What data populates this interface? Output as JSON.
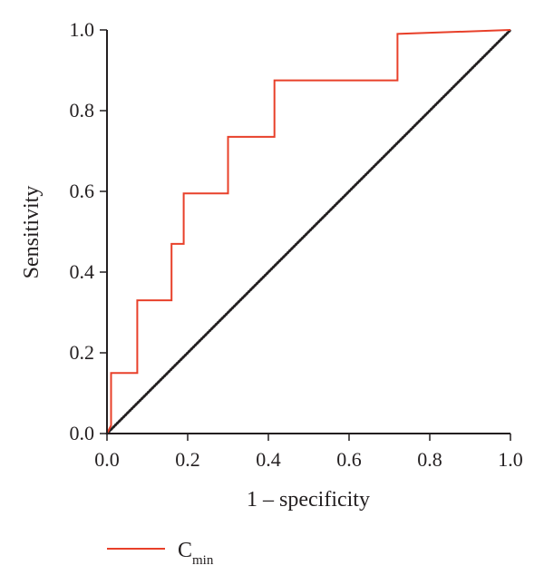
{
  "chart_data": {
    "type": "line",
    "xlabel": "1 – specificity",
    "ylabel": "Sensitivity",
    "xlim": [
      0,
      1
    ],
    "ylim": [
      0,
      1
    ],
    "x_ticks": [
      "0.0",
      "0.2",
      "0.4",
      "0.6",
      "0.8",
      "1.0"
    ],
    "y_ticks": [
      "0.0",
      "0.2",
      "0.4",
      "0.6",
      "0.8",
      "1.0"
    ],
    "x_tick_values": [
      0,
      0.2,
      0.4,
      0.6,
      0.8,
      1.0
    ],
    "y_tick_values": [
      0,
      0.2,
      0.4,
      0.6,
      0.8,
      1.0
    ],
    "grid": false,
    "legend_position": "bottom-left",
    "series": [
      {
        "name_main": "C",
        "name_sub": "min",
        "color": "#e8402a",
        "x": [
          0,
          0.01,
          0.01,
          0.075,
          0.075,
          0.16,
          0.16,
          0.19,
          0.19,
          0.3,
          0.3,
          0.415,
          0.415,
          0.72,
          0.72,
          1.0
        ],
        "y": [
          0,
          0.02,
          0.15,
          0.15,
          0.33,
          0.33,
          0.47,
          0.47,
          0.595,
          0.595,
          0.735,
          0.735,
          0.875,
          0.875,
          0.99,
          1.0
        ]
      }
    ],
    "reference_line": {
      "color": "#231f20",
      "style": "dotted",
      "x": [
        0,
        1
      ],
      "y": [
        0,
        1
      ]
    }
  }
}
